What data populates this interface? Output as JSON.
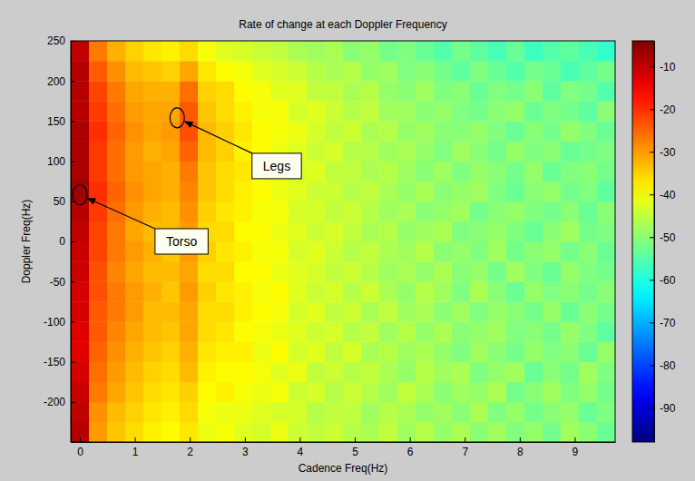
{
  "chart_data": {
    "type": "heatmap",
    "title": "Rate of change at each Doppler Frequency",
    "x_label": "Cadence Freq(Hz)",
    "y_label": "Doppler Freq(Hz)",
    "x": [
      0,
      0.33,
      0.66,
      0.99,
      1.32,
      1.65,
      1.98,
      2.31,
      2.64,
      2.97,
      3.3,
      3.63,
      3.96,
      4.29,
      4.62,
      4.95,
      5.28,
      5.61,
      5.94,
      6.27,
      6.6,
      6.93,
      7.26,
      7.59,
      7.92,
      8.25,
      8.58,
      8.91,
      9.24,
      9.57
    ],
    "y": [
      -237.5,
      -212.5,
      -187.5,
      -162.5,
      -137.5,
      -112.5,
      -87.5,
      -62.5,
      -37.5,
      -12.5,
      12.5,
      37.5,
      62.5,
      87.5,
      112.5,
      137.5,
      162.5,
      187.5,
      212.5,
      237.5
    ],
    "values": [
      [
        -9,
        -30,
        -34,
        -36,
        -38,
        -39,
        -37,
        -41,
        -40,
        -42,
        -43,
        -41,
        -44,
        -45,
        -44,
        -46,
        -47,
        -45,
        -48,
        -46,
        -49,
        -47,
        -50,
        -48,
        -51,
        -49,
        -52,
        -48,
        -50,
        -53
      ],
      [
        -10,
        -29,
        -33,
        -35,
        -37,
        -38,
        -36,
        -40,
        -41,
        -41,
        -42,
        -43,
        -43,
        -46,
        -45,
        -45,
        -48,
        -46,
        -47,
        -49,
        -48,
        -50,
        -47,
        -51,
        -49,
        -52,
        -50,
        -49,
        -53,
        -51
      ],
      [
        -11,
        -27,
        -31,
        -34,
        -36,
        -37,
        -35,
        -39,
        -38,
        -40,
        -41,
        -40,
        -44,
        -43,
        -46,
        -44,
        -46,
        -48,
        -45,
        -47,
        -50,
        -48,
        -49,
        -47,
        -52,
        -50,
        -48,
        -51,
        -49,
        -52
      ],
      [
        -12,
        -26,
        -30,
        -33,
        -35,
        -36,
        -33,
        -38,
        -39,
        -39,
        -40,
        -42,
        -41,
        -45,
        -44,
        -46,
        -45,
        -47,
        -49,
        -46,
        -48,
        -47,
        -51,
        -49,
        -48,
        -53,
        -50,
        -52,
        -48,
        -51
      ],
      [
        -13,
        -25,
        -29,
        -32,
        -34,
        -35,
        -32,
        -37,
        -38,
        -38,
        -41,
        -39,
        -43,
        -42,
        -45,
        -43,
        -47,
        -46,
        -48,
        -47,
        -49,
        -51,
        -48,
        -50,
        -52,
        -49,
        -51,
        -50,
        -53,
        -49
      ],
      [
        -13,
        -24,
        -28,
        -31,
        -33,
        -34,
        -31,
        -36,
        -37,
        -39,
        -40,
        -41,
        -42,
        -44,
        -43,
        -46,
        -45,
        -48,
        -46,
        -49,
        -47,
        -50,
        -49,
        -48,
        -51,
        -50,
        -52,
        -49,
        -51,
        -54
      ],
      [
        -12,
        -24,
        -27,
        -30,
        -33,
        -33,
        -31,
        -36,
        -36,
        -38,
        -39,
        -40,
        -43,
        -42,
        -45,
        -44,
        -47,
        -45,
        -48,
        -47,
        -50,
        -48,
        -51,
        -49,
        -50,
        -52,
        -49,
        -53,
        -50,
        -52
      ],
      [
        -12,
        -23,
        -27,
        -30,
        -32,
        -34,
        -30,
        -35,
        -37,
        -38,
        -40,
        -39,
        -42,
        -44,
        -43,
        -46,
        -44,
        -47,
        -49,
        -46,
        -48,
        -51,
        -47,
        -50,
        -53,
        -49,
        -51,
        -50,
        -52,
        -50
      ],
      [
        -11,
        -23,
        -28,
        -31,
        -33,
        -33,
        -31,
        -36,
        -36,
        -39,
        -39,
        -41,
        -42,
        -43,
        -45,
        -44,
        -46,
        -48,
        -47,
        -49,
        -47,
        -50,
        -49,
        -52,
        -48,
        -51,
        -53,
        -49,
        -51,
        -52
      ],
      [
        -11,
        -22,
        -27,
        -30,
        -32,
        -34,
        -30,
        -35,
        -37,
        -38,
        -40,
        -40,
        -43,
        -42,
        -44,
        -46,
        -45,
        -47,
        -48,
        -46,
        -50,
        -49,
        -51,
        -48,
        -52,
        -50,
        -49,
        -52,
        -50,
        -53
      ],
      [
        -10,
        -22,
        -27,
        -31,
        -33,
        -33,
        -30,
        -36,
        -36,
        -39,
        -39,
        -41,
        -42,
        -44,
        -43,
        -45,
        -47,
        -46,
        -49,
        -48,
        -47,
        -51,
        -50,
        -49,
        -51,
        -53,
        -50,
        -48,
        -52,
        -51
      ],
      [
        -9,
        -21,
        -26,
        -30,
        -32,
        -33,
        -29,
        -35,
        -37,
        -38,
        -40,
        -40,
        -43,
        -43,
        -45,
        -44,
        -46,
        -48,
        -47,
        -50,
        -49,
        -48,
        -52,
        -50,
        -49,
        -51,
        -52,
        -50,
        -53,
        -50
      ],
      [
        -7,
        -20,
        -25,
        -29,
        -31,
        -32,
        -28,
        -34,
        -36,
        -38,
        -39,
        -41,
        -42,
        -44,
        -44,
        -46,
        -45,
        -47,
        -49,
        -47,
        -50,
        -49,
        -48,
        -51,
        -53,
        -50,
        -49,
        -52,
        -51,
        -54
      ],
      [
        -8,
        -21,
        -26,
        -30,
        -31,
        -32,
        -27,
        -34,
        -36,
        -37,
        -40,
        -40,
        -43,
        -42,
        -45,
        -45,
        -47,
        -46,
        -48,
        -50,
        -48,
        -51,
        -49,
        -50,
        -52,
        -49,
        -53,
        -51,
        -50,
        -52
      ],
      [
        -8,
        -21,
        -26,
        -30,
        -32,
        -31,
        -25,
        -33,
        -35,
        -38,
        -39,
        -41,
        -42,
        -44,
        -43,
        -46,
        -46,
        -48,
        -47,
        -49,
        -51,
        -48,
        -50,
        -52,
        -49,
        -51,
        -50,
        -53,
        -52,
        -51
      ],
      [
        -8,
        -20,
        -25,
        -29,
        -31,
        -30,
        -23,
        -33,
        -35,
        -37,
        -39,
        -40,
        -41,
        -43,
        -45,
        -44,
        -47,
        -46,
        -49,
        -48,
        -50,
        -50,
        -49,
        -51,
        -53,
        -50,
        -52,
        -49,
        -51,
        -53
      ],
      [
        -9,
        -21,
        -26,
        -30,
        -31,
        -31,
        -24,
        -34,
        -36,
        -38,
        -40,
        -40,
        -43,
        -42,
        -44,
        -46,
        -45,
        -48,
        -48,
        -50,
        -49,
        -51,
        -52,
        -50,
        -49,
        -53,
        -51,
        -52,
        -54,
        -50
      ],
      [
        -9,
        -22,
        -27,
        -31,
        -32,
        -32,
        -26,
        -35,
        -36,
        -39,
        -40,
        -42,
        -42,
        -45,
        -45,
        -47,
        -46,
        -49,
        -50,
        -48,
        -51,
        -50,
        -53,
        -51,
        -52,
        -50,
        -54,
        -51,
        -52,
        -55
      ],
      [
        -9,
        -24,
        -29,
        -33,
        -34,
        -35,
        -31,
        -37,
        -39,
        -40,
        -42,
        -43,
        -44,
        -46,
        -47,
        -46,
        -49,
        -48,
        -51,
        -50,
        -52,
        -54,
        -51,
        -53,
        -55,
        -52,
        -53,
        -56,
        -54,
        -52
      ],
      [
        -10,
        -27,
        -32,
        -35,
        -37,
        -38,
        -36,
        -40,
        -42,
        -43,
        -44,
        -45,
        -47,
        -48,
        -47,
        -50,
        -49,
        -52,
        -51,
        -53,
        -55,
        -52,
        -54,
        -56,
        -53,
        -57,
        -55,
        -54,
        -56,
        -58
      ]
    ],
    "xlim": [
      -0.165,
      9.735
    ],
    "xticks": [
      0,
      1,
      2,
      3,
      4,
      5,
      6,
      7,
      8,
      9
    ],
    "ylim": [
      -250,
      250
    ],
    "yticks": [
      -200,
      -150,
      -100,
      -50,
      0,
      50,
      100,
      150,
      200,
      250
    ],
    "colorbar": {
      "lim": [
        -98,
        -4
      ],
      "ticks": [
        -90,
        -80,
        -70,
        -60,
        -50,
        -40,
        -30,
        -20,
        -10
      ]
    },
    "grid": false,
    "annotations": [
      {
        "text": "Legs",
        "x": 3.58,
        "y": 94,
        "point_x": 1.77,
        "point_y": 154
      },
      {
        "text": "Torso",
        "x": 1.85,
        "y": 0,
        "point_x": 0,
        "point_y": 58
      }
    ]
  }
}
